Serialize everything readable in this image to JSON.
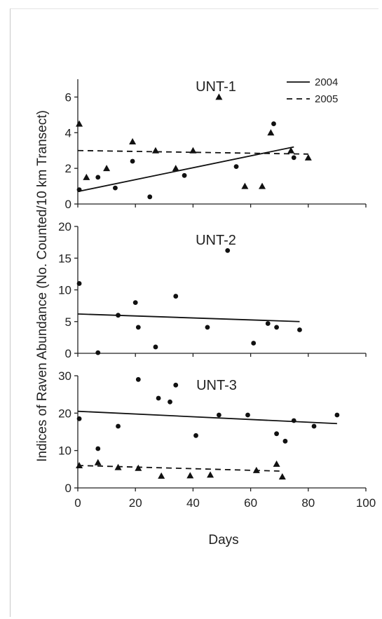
{
  "chart_data": {
    "type": "scatter",
    "ylabel": "Indices of Raven Abundance (No. Counted/10 km Transect)",
    "xlabel": "Days",
    "xlim": [
      0,
      100
    ],
    "xticks": [
      "0",
      "20",
      "40",
      "60",
      "80",
      "100"
    ],
    "legend": {
      "placement": "top-right",
      "entries": [
        {
          "label": "2004",
          "line_style": "solid",
          "marker": "circle"
        },
        {
          "label": "2005",
          "line_style": "dashed",
          "marker": "triangle"
        }
      ]
    },
    "panels": [
      {
        "title": "UNT-1",
        "ylim": [
          0,
          7
        ],
        "yticks": [
          "0",
          "2",
          "4",
          "6"
        ],
        "series": [
          {
            "name": "2004",
            "marker": "circle",
            "points": [
              [
                0.5,
                0.8
              ],
              [
                7,
                1.5
              ],
              [
                13,
                0.9
              ],
              [
                19,
                2.4
              ],
              [
                25,
                0.4
              ],
              [
                37,
                1.6
              ],
              [
                55,
                2.1
              ],
              [
                68,
                4.5
              ],
              [
                75,
                2.6
              ]
            ],
            "trend": [
              [
                0,
                0.7
              ],
              [
                75,
                3.2
              ]
            ]
          },
          {
            "name": "2005",
            "marker": "triangle",
            "points": [
              [
                0.5,
                4.5
              ],
              [
                3,
                1.5
              ],
              [
                10,
                2.0
              ],
              [
                19,
                3.5
              ],
              [
                27,
                3.0
              ],
              [
                34,
                2.0
              ],
              [
                40,
                3.0
              ],
              [
                49,
                6.0
              ],
              [
                58,
                1.0
              ],
              [
                64,
                1.0
              ],
              [
                67,
                4.0
              ],
              [
                74,
                3.0
              ],
              [
                80,
                2.6
              ]
            ],
            "trend": [
              [
                0,
                3.0
              ],
              [
                80,
                2.8
              ]
            ]
          }
        ]
      },
      {
        "title": "UNT-2",
        "ylim": [
          0,
          20
        ],
        "yticks": [
          "0",
          "5",
          "10",
          "15",
          "20"
        ],
        "series": [
          {
            "name": "2004",
            "marker": "circle",
            "points": [
              [
                0.5,
                11
              ],
              [
                7,
                0.1
              ],
              [
                14,
                6.0
              ],
              [
                20,
                8.0
              ],
              [
                21,
                4.1
              ],
              [
                27,
                1.0
              ],
              [
                34,
                9.0
              ],
              [
                45,
                4.1
              ],
              [
                52,
                16.2
              ],
              [
                61,
                1.6
              ],
              [
                66,
                4.7
              ],
              [
                69,
                4.1
              ],
              [
                77,
                3.7
              ]
            ],
            "trend": [
              [
                0,
                6.2
              ],
              [
                77,
                5.0
              ]
            ]
          }
        ]
      },
      {
        "title": "UNT-3",
        "ylim": [
          0,
          30
        ],
        "yticks": [
          "0",
          "10",
          "20",
          "30"
        ],
        "series": [
          {
            "name": "2004",
            "marker": "circle",
            "points": [
              [
                0.5,
                18.5
              ],
              [
                7,
                10.5
              ],
              [
                14,
                16.5
              ],
              [
                21,
                29.0
              ],
              [
                28,
                24.0
              ],
              [
                32,
                23.0
              ],
              [
                34,
                27.5
              ],
              [
                41,
                14.0
              ],
              [
                49,
                19.5
              ],
              [
                59,
                19.5
              ],
              [
                69,
                14.5
              ],
              [
                72,
                12.5
              ],
              [
                75,
                18.0
              ],
              [
                82,
                16.5
              ],
              [
                90,
                19.5
              ]
            ],
            "trend": [
              [
                0,
                20.5
              ],
              [
                90,
                17.2
              ]
            ]
          },
          {
            "name": "2005",
            "marker": "triangle",
            "points": [
              [
                0.5,
                6.0
              ],
              [
                7,
                6.8
              ],
              [
                14,
                5.5
              ],
              [
                21,
                5.3
              ],
              [
                29,
                3.2
              ],
              [
                39,
                3.3
              ],
              [
                46,
                3.5
              ],
              [
                62,
                4.7
              ],
              [
                69,
                6.4
              ],
              [
                71,
                3.0
              ]
            ],
            "trend": [
              [
                0,
                6.0
              ],
              [
                70,
                4.5
              ]
            ]
          }
        ]
      }
    ],
    "grid": false
  }
}
